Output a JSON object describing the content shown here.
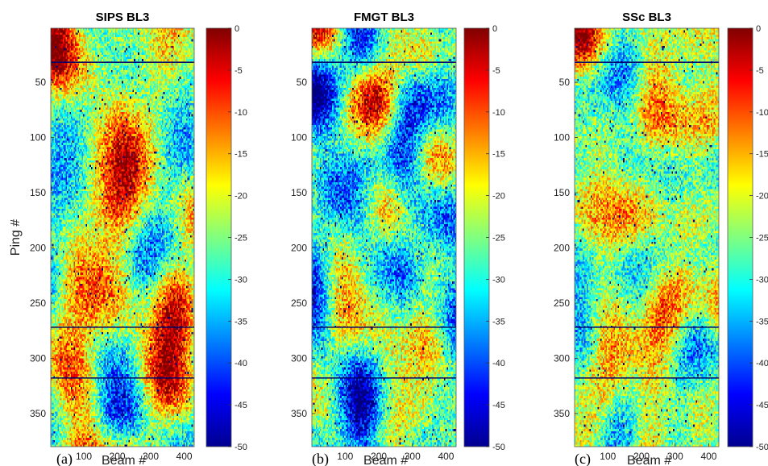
{
  "chart_data": [
    {
      "type": "heatmap",
      "panel_label": "(a)",
      "title": "SIPS BL3",
      "xlabel": "Beam #",
      "ylabel": "Ping #",
      "x_range": [
        1,
        430
      ],
      "y_range": [
        1,
        380
      ],
      "x_ticks": [
        100,
        200,
        300,
        400
      ],
      "y_ticks": [
        50,
        100,
        150,
        200,
        250,
        300,
        350
      ],
      "colorbar": {
        "range": [
          -50,
          0
        ],
        "ticks": [
          0,
          -5,
          -10,
          -15,
          -20,
          -25,
          -30,
          -35,
          -40,
          -45,
          -50
        ],
        "colormap": "jet"
      },
      "mean_level": -22
    },
    {
      "type": "heatmap",
      "panel_label": "(b)",
      "title": "FMGT BL3",
      "xlabel": "Beam #",
      "ylabel": "",
      "x_range": [
        1,
        430
      ],
      "y_range": [
        1,
        380
      ],
      "x_ticks": [
        100,
        200,
        300,
        400
      ],
      "y_ticks": [
        50,
        100,
        150,
        200,
        250,
        300,
        350
      ],
      "colorbar": {
        "range": [
          -50,
          0
        ],
        "ticks": [
          0,
          -5,
          -10,
          -15,
          -20,
          -25,
          -30,
          -35,
          -40,
          -45,
          -50
        ],
        "colormap": "jet"
      },
      "mean_level": -29
    },
    {
      "type": "heatmap",
      "panel_label": "(c)",
      "title": "SSc BL3",
      "xlabel": "Beam #",
      "ylabel": "",
      "x_range": [
        1,
        430
      ],
      "y_range": [
        1,
        380
      ],
      "x_ticks": [
        100,
        200,
        300,
        400
      ],
      "y_ticks": [
        50,
        100,
        150,
        200,
        250,
        300,
        350
      ],
      "colorbar": {
        "range": [
          -50,
          0
        ],
        "ticks": [
          0,
          -5,
          -10,
          -15,
          -20,
          -25,
          -30,
          -35,
          -40,
          -45,
          -50
        ],
        "colormap": "jet"
      },
      "mean_level": -24
    }
  ]
}
